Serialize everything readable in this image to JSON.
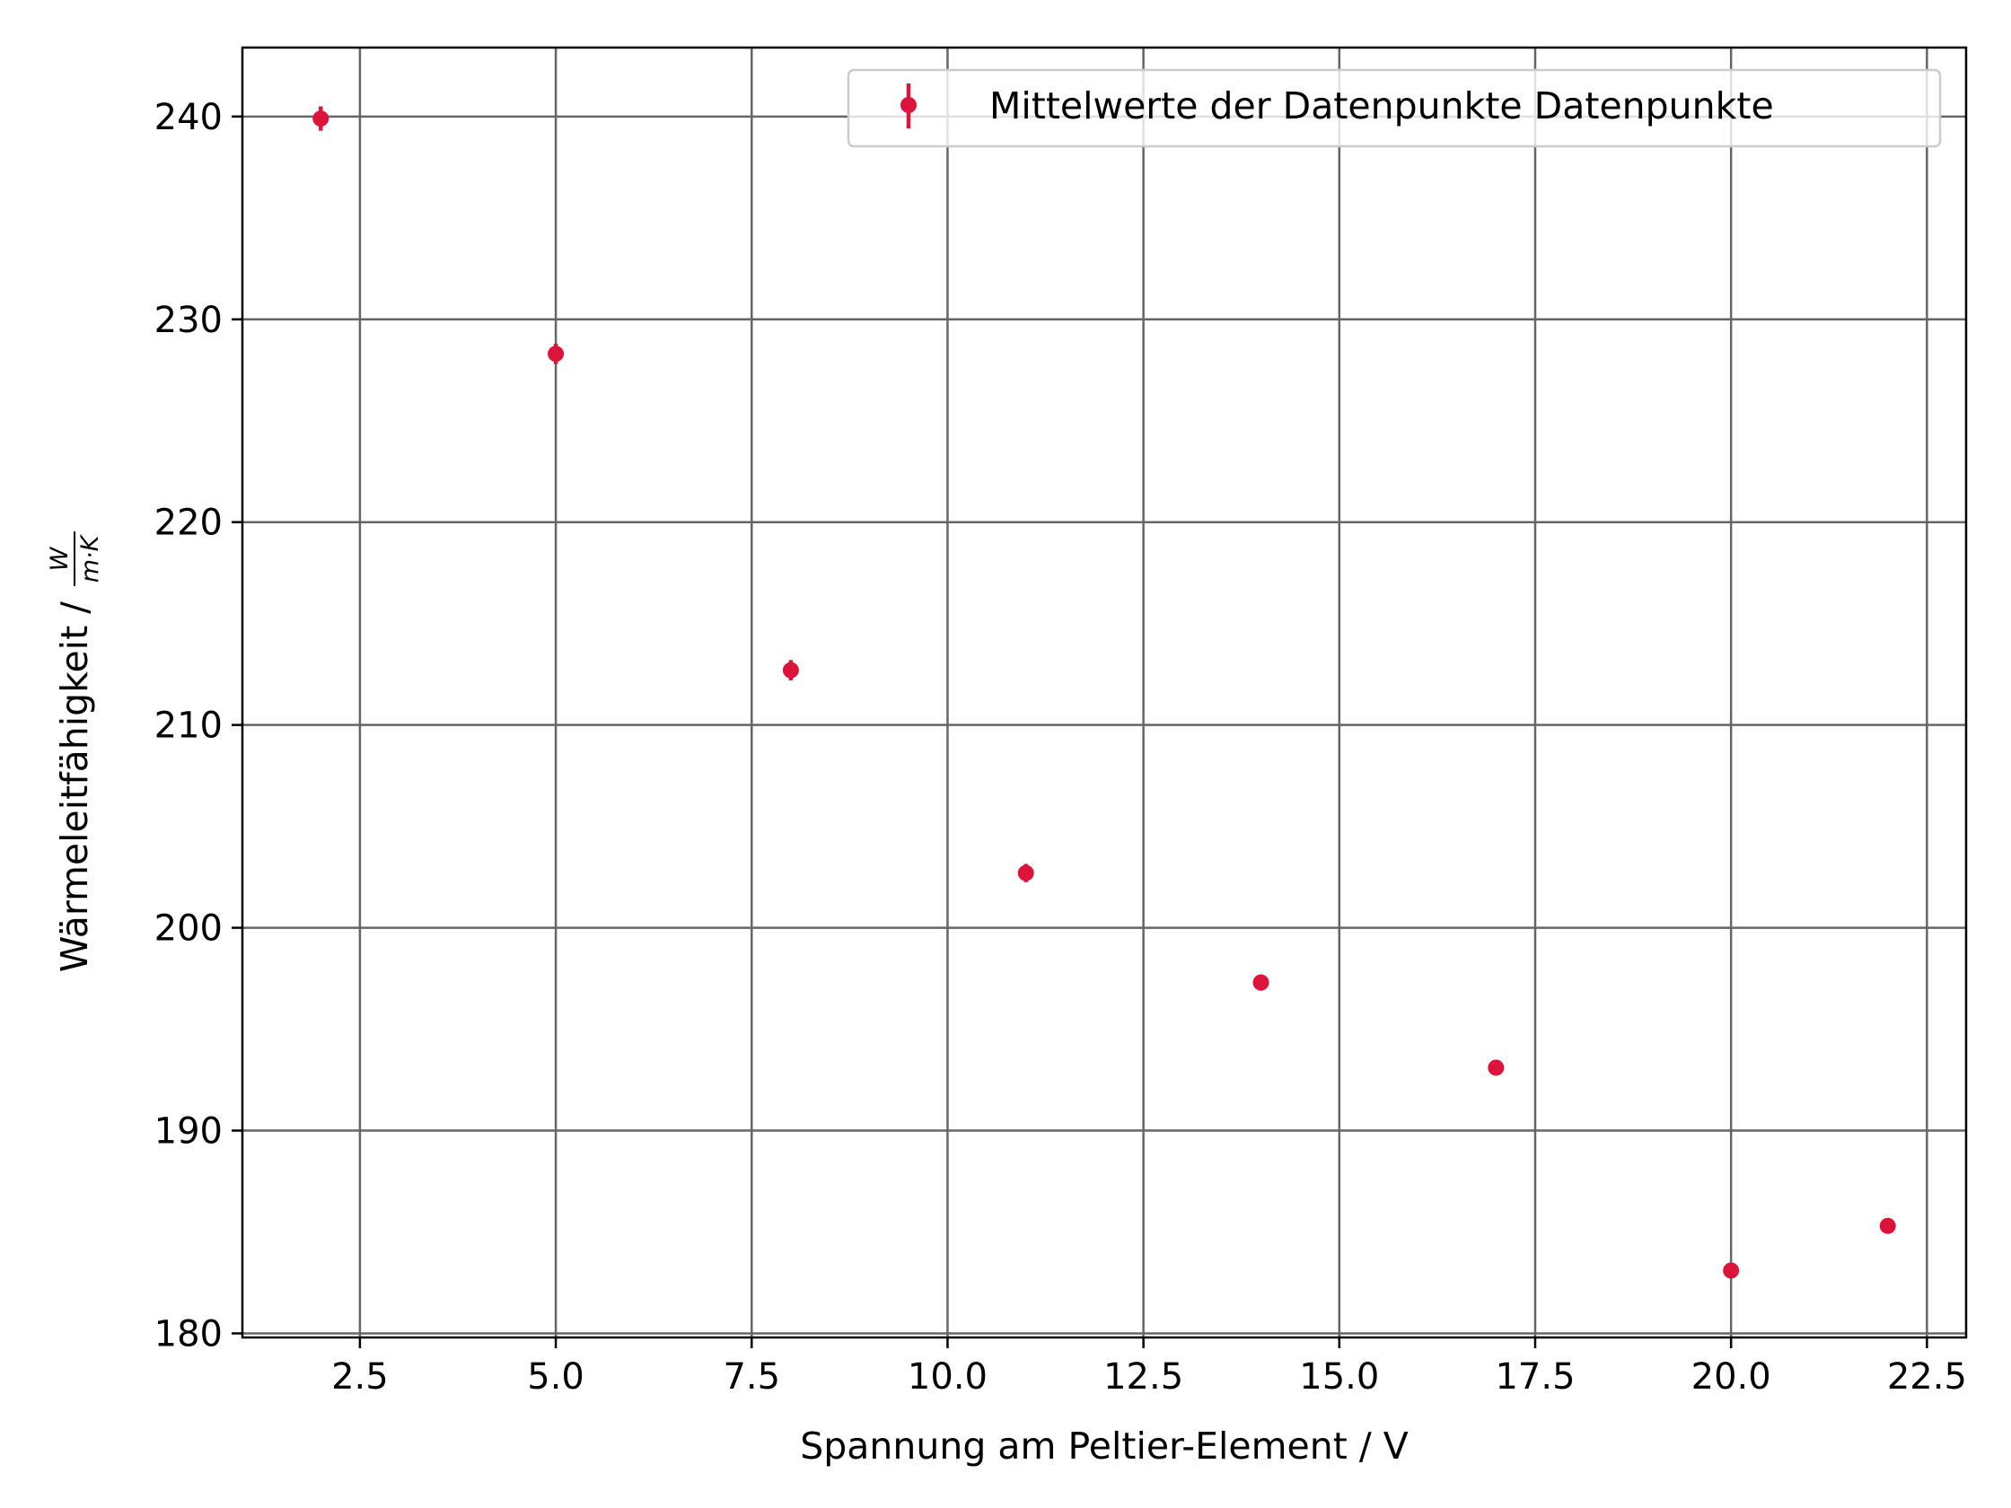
{
  "chart_data": {
    "type": "scatter",
    "title": "",
    "xlabel": "Spannung am Peltier-Element / V",
    "ylabel": {
      "text": "Wärmeleitfähigkeit /",
      "unit_numerator": "W",
      "unit_denominator": "m·K"
    },
    "xlim": [
      1.0,
      23.0
    ],
    "ylim": [
      179.8,
      243.4
    ],
    "xticks": [
      2.5,
      5.0,
      7.5,
      10.0,
      12.5,
      15.0,
      17.5,
      20.0,
      22.5
    ],
    "xtick_labels": [
      "2.5",
      "5.0",
      "7.5",
      "10.0",
      "12.5",
      "15.0",
      "17.5",
      "20.0",
      "22.5"
    ],
    "yticks": [
      180,
      190,
      200,
      210,
      220,
      230,
      240
    ],
    "ytick_labels": [
      "180",
      "190",
      "200",
      "210",
      "220",
      "230",
      "240"
    ],
    "grid": true,
    "legend_position": "top-right",
    "color": "#dc143c",
    "series": [
      {
        "name": "Mittelwerte der Datenpunkte Datenpunkte",
        "x": [
          2,
          5,
          8,
          11,
          14,
          17,
          20,
          22
        ],
        "y": [
          239.9,
          228.3,
          212.7,
          202.7,
          197.3,
          193.1,
          183.1,
          185.3
        ],
        "yerr": [
          0.6,
          0.5,
          0.5,
          0.45,
          0.4,
          0.25,
          0.2,
          0.2
        ]
      }
    ]
  }
}
